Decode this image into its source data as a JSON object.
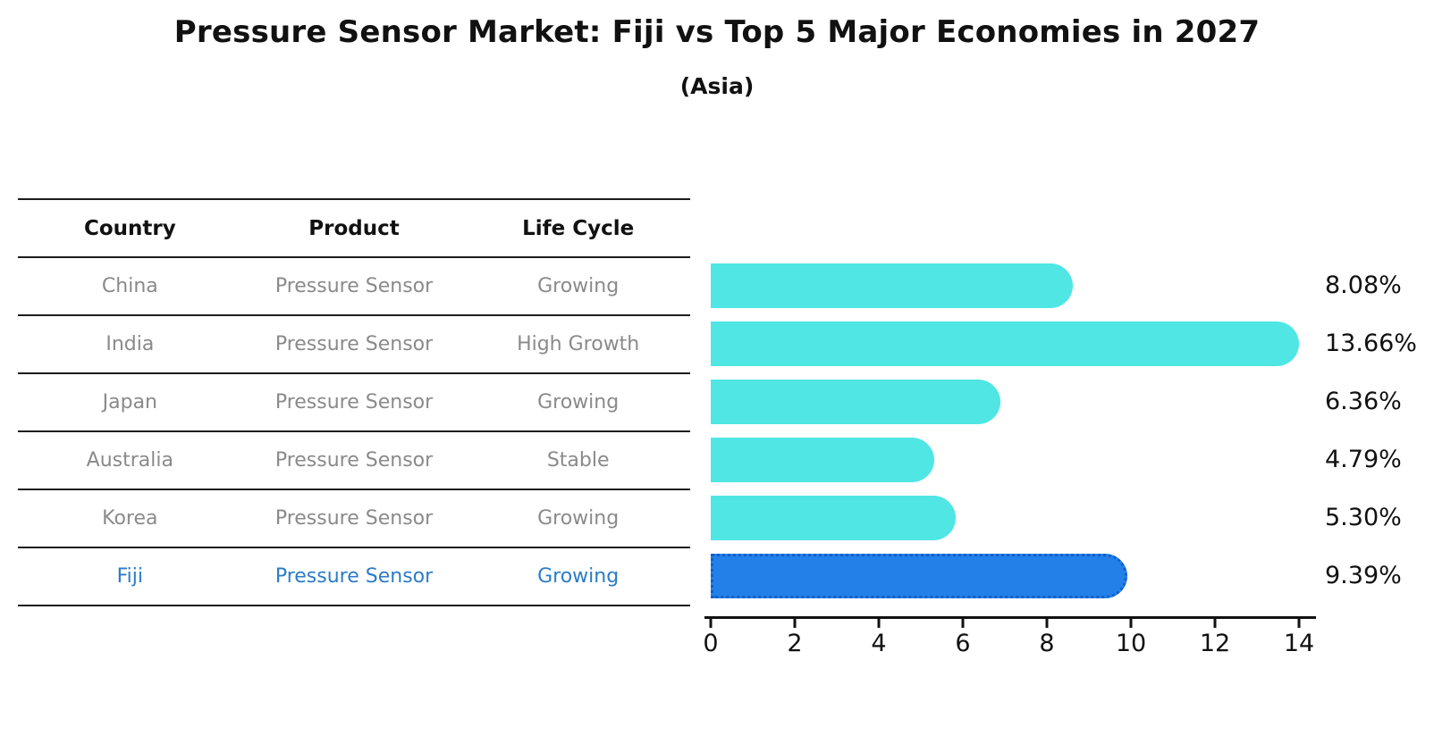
{
  "title": "Pressure Sensor Market: Fiji vs Top 5 Major Economies in 2027",
  "subtitle": "(Asia)",
  "table": {
    "columns": [
      "Country",
      "Product",
      "Life Cycle"
    ],
    "rows": [
      {
        "country": "China",
        "product": "Pressure Sensor",
        "life_cycle": "Growing"
      },
      {
        "country": "India",
        "product": "Pressure Sensor",
        "life_cycle": "High Growth"
      },
      {
        "country": "Japan",
        "product": "Pressure Sensor",
        "life_cycle": "Growing"
      },
      {
        "country": "Australia",
        "product": "Pressure Sensor",
        "life_cycle": "Stable"
      },
      {
        "country": "Korea",
        "product": "Pressure Sensor",
        "life_cycle": "Growing"
      },
      {
        "country": "Fiji",
        "product": "Pressure Sensor",
        "life_cycle": "Growing"
      }
    ]
  },
  "chart_data": {
    "type": "bar",
    "orientation": "horizontal",
    "title": "Pressure Sensor Market: Fiji vs Top 5 Major Economies in 2027",
    "subtitle": "(Asia)",
    "categories": [
      "China",
      "India",
      "Japan",
      "Australia",
      "Korea",
      "Fiji"
    ],
    "values": [
      8.08,
      13.66,
      6.36,
      4.79,
      5.3,
      9.39
    ],
    "value_labels": [
      "8.08%",
      "13.66%",
      "6.36%",
      "4.79%",
      "5.30%",
      "9.39%"
    ],
    "xlim": [
      0,
      14
    ],
    "xticks": [
      0,
      2,
      4,
      6,
      8,
      10,
      12,
      14
    ],
    "grid": false,
    "legend": "none",
    "highlight_index": 5,
    "colors": {
      "bar": "#4FE6E4",
      "highlight": "#2280E8",
      "highlight_edge": "#0E5FCB",
      "highlight_text": "#2B7CC9",
      "muted_text": "#8a8a8a",
      "axis": "#111111"
    }
  }
}
